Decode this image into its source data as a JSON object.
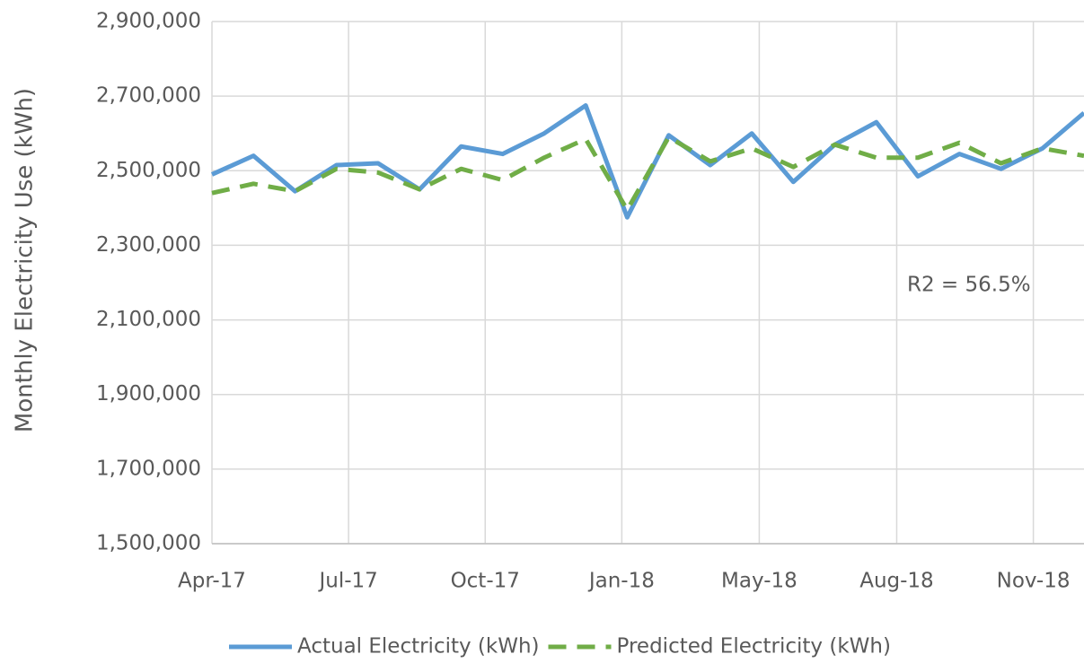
{
  "chart_data": {
    "type": "line",
    "y_label": "Monthly Electricity Use (kWh)",
    "annotation": "R2 = 56.5%",
    "x": [
      0,
      1,
      2,
      3,
      4,
      5,
      6,
      7,
      8,
      9,
      10,
      11,
      12,
      13,
      14,
      15,
      16,
      17,
      18,
      19,
      20,
      21
    ],
    "xlim": [
      0,
      21
    ],
    "xticks": [
      {
        "value": 0,
        "label": "Apr-17"
      },
      {
        "value": 3.29,
        "label": "Jul-17"
      },
      {
        "value": 6.58,
        "label": "Oct-17"
      },
      {
        "value": 9.87,
        "label": "Jan-18"
      },
      {
        "value": 13.18,
        "label": "May-18"
      },
      {
        "value": 16.49,
        "label": "Aug-18"
      },
      {
        "value": 19.78,
        "label": "Nov-18"
      }
    ],
    "ylim": [
      1500000,
      2900000
    ],
    "yticks": [
      {
        "value": 1500000,
        "label": "1,500,000"
      },
      {
        "value": 1700000,
        "label": "1,700,000"
      },
      {
        "value": 1900000,
        "label": "1,900,000"
      },
      {
        "value": 2100000,
        "label": "2,100,000"
      },
      {
        "value": 2300000,
        "label": "2,300,000"
      },
      {
        "value": 2500000,
        "label": "2,500,000"
      },
      {
        "value": 2700000,
        "label": "2,700,000"
      },
      {
        "value": 2900000,
        "label": "2,900,000"
      }
    ],
    "grid": true,
    "legend": "bottom",
    "series": [
      {
        "name": "Actual Electricity (kWh)",
        "color": "#5b9bd5",
        "dash": false,
        "values": [
          2490000,
          2540000,
          2445000,
          2515000,
          2520000,
          2450000,
          2565000,
          2545000,
          2600000,
          2675000,
          2375000,
          2595000,
          2515000,
          2600000,
          2470000,
          2570000,
          2630000,
          2485000,
          2545000,
          2505000,
          2560000,
          2655000
        ]
      },
      {
        "name": "Predicted Electricity (kWh)",
        "color": "#70ad47",
        "dash": true,
        "values": [
          2440000,
          2465000,
          2445000,
          2505000,
          2495000,
          2450000,
          2505000,
          2475000,
          2535000,
          2585000,
          2395000,
          2590000,
          2525000,
          2560000,
          2510000,
          2570000,
          2535000,
          2535000,
          2575000,
          2520000,
          2560000,
          2540000
        ]
      }
    ]
  }
}
